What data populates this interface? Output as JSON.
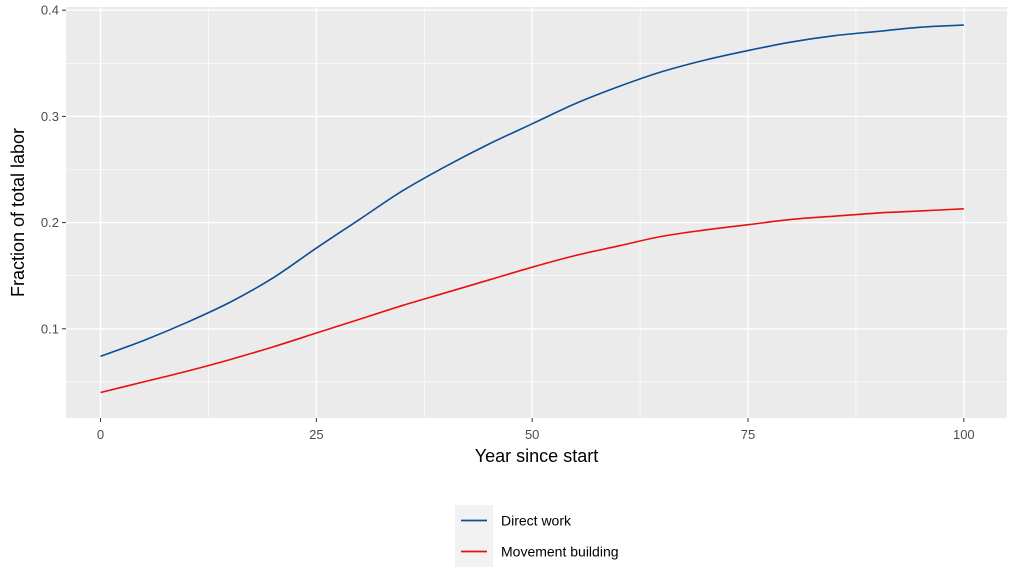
{
  "chart_data": {
    "type": "line",
    "xlabel": "Year since start",
    "ylabel": "Fraction of total labor",
    "xlim": [
      -4,
      105
    ],
    "ylim": [
      0.016,
      0.403
    ],
    "x_ticks": [
      0,
      25,
      50,
      75,
      100
    ],
    "y_ticks": [
      0.1,
      0.2,
      0.3,
      0.4
    ],
    "x_tick_labels": [
      "0",
      "25",
      "50",
      "75",
      "100"
    ],
    "y_tick_labels": [
      "0.1",
      "0.2",
      "0.3",
      "0.4"
    ],
    "grid": true,
    "panel_background": "#EBEBEB",
    "legend_position": "bottom",
    "x": [
      0,
      5,
      10,
      15,
      20,
      25,
      30,
      35,
      40,
      45,
      50,
      55,
      60,
      65,
      70,
      75,
      80,
      85,
      90,
      95,
      100
    ],
    "series": [
      {
        "name": "Direct work",
        "color": "#0B4F94",
        "values": [
          0.074,
          0.089,
          0.106,
          0.125,
          0.148,
          0.176,
          0.203,
          0.23,
          0.253,
          0.274,
          0.293,
          0.312,
          0.328,
          0.342,
          0.353,
          0.362,
          0.37,
          0.376,
          0.38,
          0.384,
          0.386
        ]
      },
      {
        "name": "Movement building",
        "color": "#E8100E",
        "values": [
          0.04,
          0.05,
          0.06,
          0.071,
          0.083,
          0.096,
          0.109,
          0.122,
          0.134,
          0.146,
          0.158,
          0.169,
          0.178,
          0.187,
          0.193,
          0.198,
          0.203,
          0.206,
          0.209,
          0.211,
          0.213
        ]
      }
    ]
  }
}
